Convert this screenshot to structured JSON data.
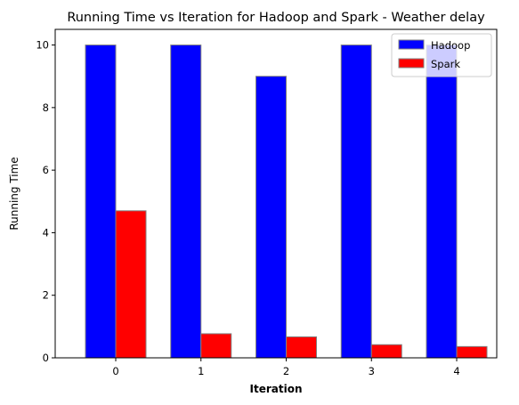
{
  "chart_data": {
    "type": "bar",
    "title": "Running Time vs Iteration for Hadoop and Spark - Weather delay",
    "xlabel": "Iteration",
    "ylabel": "Running Time",
    "categories": [
      "0",
      "1",
      "2",
      "3",
      "4"
    ],
    "series": [
      {
        "name": "Hadoop",
        "values": [
          10,
          10,
          9,
          10,
          10
        ],
        "color": "#0000ff"
      },
      {
        "name": "Spark",
        "values": [
          4.7,
          0.77,
          0.67,
          0.42,
          0.36
        ],
        "color": "#ff0000"
      }
    ],
    "ylim": [
      0,
      10.5
    ],
    "yticks": [
      0,
      2,
      4,
      6,
      8,
      10
    ],
    "grid": false,
    "legend": "top-right",
    "bar_edge_color": "#808080"
  }
}
